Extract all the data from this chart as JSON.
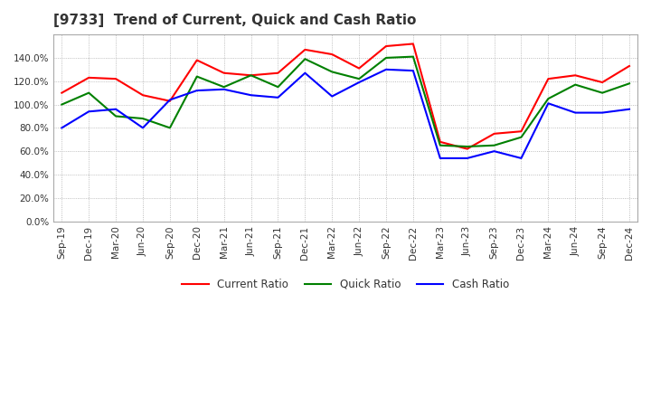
{
  "title": "[9733]  Trend of Current, Quick and Cash Ratio",
  "x_labels": [
    "Sep-19",
    "Dec-19",
    "Mar-20",
    "Jun-20",
    "Sep-20",
    "Dec-20",
    "Mar-21",
    "Jun-21",
    "Sep-21",
    "Dec-21",
    "Mar-22",
    "Jun-22",
    "Sep-22",
    "Dec-22",
    "Mar-23",
    "Jun-23",
    "Sep-23",
    "Dec-23",
    "Mar-24",
    "Jun-24",
    "Sep-24",
    "Dec-24"
  ],
  "current_ratio": [
    110.0,
    123.0,
    122.0,
    108.0,
    103.0,
    138.0,
    127.0,
    125.0,
    127.0,
    147.0,
    143.0,
    131.0,
    150.0,
    152.0,
    68.0,
    62.0,
    75.0,
    77.0,
    122.0,
    125.0,
    119.0,
    133.0
  ],
  "quick_ratio": [
    100.0,
    110.0,
    90.0,
    88.0,
    80.0,
    124.0,
    115.0,
    125.0,
    115.0,
    139.0,
    128.0,
    122.0,
    140.0,
    141.0,
    65.0,
    64.0,
    65.0,
    72.0,
    105.0,
    117.0,
    110.0,
    118.0
  ],
  "cash_ratio": [
    80.0,
    94.0,
    96.0,
    80.0,
    104.0,
    112.0,
    113.0,
    108.0,
    106.0,
    127.0,
    107.0,
    119.0,
    130.0,
    129.0,
    54.0,
    54.0,
    60.0,
    54.0,
    101.0,
    93.0,
    93.0,
    96.0
  ],
  "ylim": [
    0,
    160
  ],
  "yticks": [
    0,
    20,
    40,
    60,
    80,
    100,
    120,
    140
  ],
  "current_color": "#ff0000",
  "quick_color": "#008000",
  "cash_color": "#0000ff",
  "bg_color": "#ffffff",
  "grid_color": "#aaaaaa",
  "title_fontsize": 11,
  "label_fontsize": 7.5,
  "legend_fontsize": 8.5
}
